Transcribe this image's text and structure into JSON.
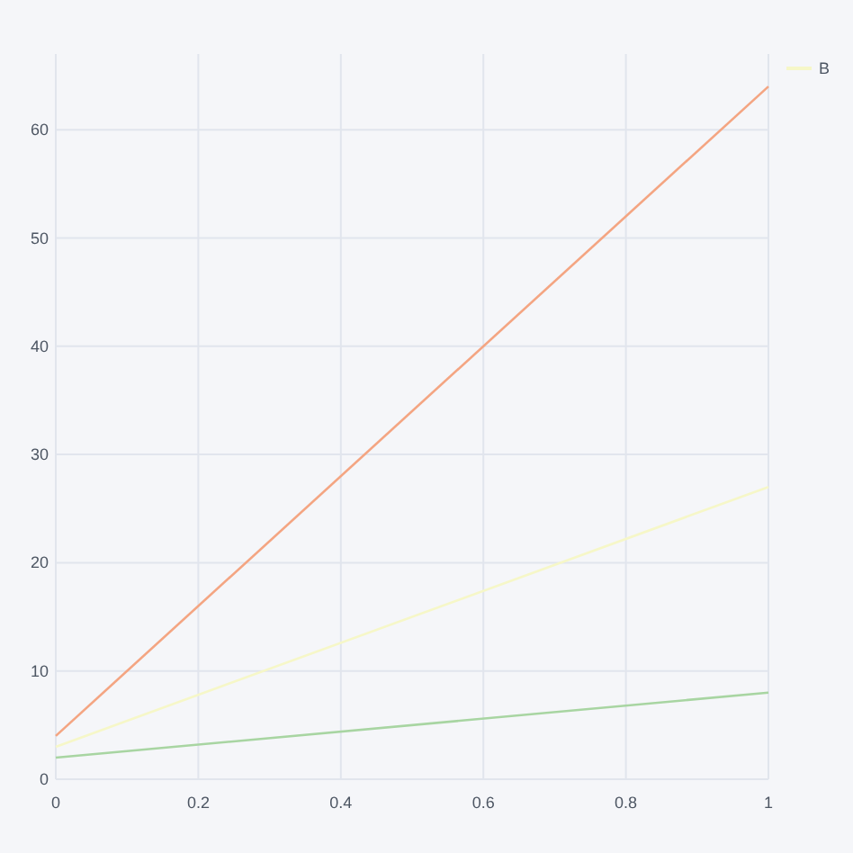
{
  "chart_data": {
    "type": "line",
    "x": [
      0,
      1
    ],
    "series": [
      {
        "color": "#f4a582",
        "values": [
          4,
          64
        ]
      },
      {
        "name": "B",
        "color": "#f6f7c8",
        "values": [
          3,
          27
        ]
      },
      {
        "color": "#a8d5a2",
        "values": [
          2,
          8
        ]
      }
    ],
    "xlim": [
      0,
      1
    ],
    "xticks": [
      0,
      0.2,
      0.4,
      0.6,
      0.8,
      1
    ],
    "ylim": [
      0,
      67
    ],
    "yticks": [
      0,
      10,
      20,
      30,
      40,
      50,
      60
    ],
    "grid": true,
    "legend": "top right",
    "line_style": "solid",
    "marker": "none"
  }
}
